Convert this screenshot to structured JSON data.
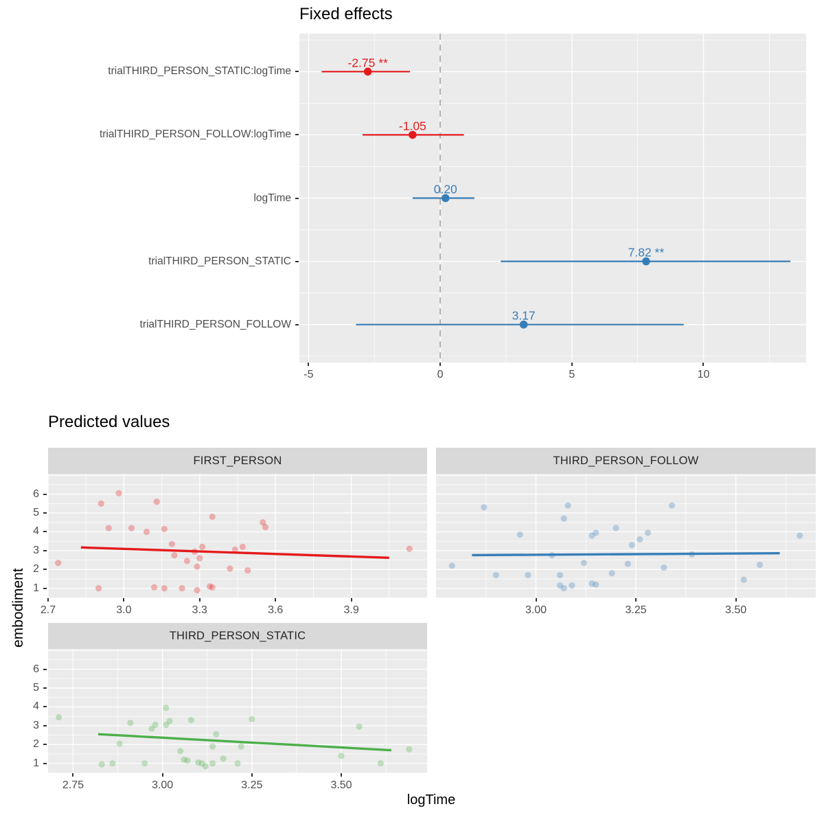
{
  "chart_data": [
    {
      "type": "forest",
      "title": "Fixed effects",
      "xlabel": "",
      "ylabel": "",
      "xlim": [
        -5.35,
        13.9
      ],
      "xticks": [
        -5,
        0,
        5,
        10
      ],
      "xtick_labels": [
        "-5",
        "0",
        "5",
        "10"
      ],
      "minor_xticks": [
        -2.5,
        2.5,
        7.5,
        12.5
      ],
      "zero_line_x": 0,
      "zero_line_style": "dashed-gray",
      "grid": "on",
      "legend": "none",
      "rows": [
        {
          "term": "trialTHIRD_PERSON_STATIC:logTime",
          "estimate": -2.75,
          "ci_low": -4.5,
          "ci_high": -1.15,
          "label": "-2.75 **",
          "color": "#E41A1C"
        },
        {
          "term": "trialTHIRD_PERSON_FOLLOW:logTime",
          "estimate": -1.05,
          "ci_low": -2.95,
          "ci_high": 0.9,
          "label": "-1.05",
          "color": "#E41A1C"
        },
        {
          "term": "logTime",
          "estimate": 0.2,
          "ci_low": -1.05,
          "ci_high": 1.3,
          "label": "0.20",
          "color": "#377EB8"
        },
        {
          "term": "trialTHIRD_PERSON_STATIC",
          "estimate": 7.82,
          "ci_low": 2.3,
          "ci_high": 13.3,
          "label": "7.82 **",
          "color": "#377EB8"
        },
        {
          "term": "trialTHIRD_PERSON_FOLLOW",
          "estimate": 3.17,
          "ci_low": -3.2,
          "ci_high": 9.25,
          "label": "3.17",
          "color": "#377EB8"
        }
      ]
    },
    {
      "type": "scatter",
      "title": "Predicted values",
      "xlabel": "logTime",
      "ylabel": "embodiment",
      "ylim": [
        0.48,
        7.08
      ],
      "yticks": [
        1,
        2,
        3,
        4,
        5,
        6
      ],
      "ytick_labels": [
        "1",
        "2",
        "3",
        "4",
        "5",
        "6"
      ],
      "minor_y_step": 0.5,
      "grid": "on",
      "legend": "none",
      "facets": [
        {
          "label": "FIRST_PERSON",
          "color": "#E41A1C",
          "xlim": [
            2.7,
            4.2
          ],
          "xticks": [
            2.7,
            3.0,
            3.3,
            3.6,
            3.9
          ],
          "xtick_labels": [
            "2.7",
            "3.0",
            "3.3",
            "3.6",
            "3.9"
          ],
          "minor_x": [
            2.85,
            3.15,
            3.45,
            3.75,
            4.05
          ],
          "line": {
            "x": [
              2.83,
              4.05
            ],
            "y": [
              3.17,
              2.62
            ]
          },
          "points": [
            [
              2.74,
              2.35
            ],
            [
              2.9,
              1.0
            ],
            [
              2.91,
              5.5
            ],
            [
              2.94,
              4.2
            ],
            [
              2.98,
              6.05
            ],
            [
              3.03,
              4.2
            ],
            [
              3.09,
              4.0
            ],
            [
              3.12,
              1.05
            ],
            [
              3.13,
              5.6
            ],
            [
              3.16,
              4.15
            ],
            [
              3.16,
              1.0
            ],
            [
              3.19,
              3.35
            ],
            [
              3.2,
              2.75
            ],
            [
              3.23,
              1.0
            ],
            [
              3.25,
              2.45
            ],
            [
              3.28,
              2.95
            ],
            [
              3.29,
              2.15
            ],
            [
              3.29,
              0.9
            ],
            [
              3.3,
              2.6
            ],
            [
              3.31,
              3.2
            ],
            [
              3.34,
              1.1
            ],
            [
              3.35,
              1.05
            ],
            [
              3.35,
              4.8
            ],
            [
              3.42,
              2.05
            ],
            [
              3.44,
              3.05
            ],
            [
              3.47,
              3.2
            ],
            [
              3.49,
              1.95
            ],
            [
              3.55,
              4.5
            ],
            [
              3.56,
              4.25
            ],
            [
              4.13,
              3.1
            ]
          ]
        },
        {
          "label": "THIRD_PERSON_FOLLOW",
          "color": "#377EB8",
          "xlim": [
            2.75,
            3.7
          ],
          "xticks": [
            3.0,
            3.25,
            3.5
          ],
          "xtick_labels": [
            "3.00",
            "3.25",
            "3.50"
          ],
          "minor_x": [
            2.875,
            3.125,
            3.375,
            3.625
          ],
          "line": {
            "x": [
              2.84,
              3.61
            ],
            "y": [
              2.76,
              2.86
            ]
          },
          "points": [
            [
              2.79,
              2.2
            ],
            [
              2.87,
              5.3
            ],
            [
              2.9,
              1.7
            ],
            [
              2.96,
              3.85
            ],
            [
              2.98,
              1.7
            ],
            [
              3.04,
              2.75
            ],
            [
              3.06,
              1.7
            ],
            [
              3.06,
              1.15
            ],
            [
              3.07,
              1.0
            ],
            [
              3.07,
              4.7
            ],
            [
              3.08,
              5.4
            ],
            [
              3.09,
              1.15
            ],
            [
              3.12,
              2.35
            ],
            [
              3.14,
              3.8
            ],
            [
              3.14,
              1.25
            ],
            [
              3.15,
              3.95
            ],
            [
              3.15,
              1.2
            ],
            [
              3.19,
              1.8
            ],
            [
              3.2,
              4.2
            ],
            [
              3.23,
              2.3
            ],
            [
              3.24,
              3.3
            ],
            [
              3.26,
              3.6
            ],
            [
              3.28,
              3.95
            ],
            [
              3.32,
              2.1
            ],
            [
              3.34,
              5.4
            ],
            [
              3.39,
              2.8
            ],
            [
              3.52,
              1.45
            ],
            [
              3.56,
              2.25
            ],
            [
              3.66,
              3.8
            ]
          ]
        },
        {
          "label": "THIRD_PERSON_STATIC",
          "color": "#4DAF4A",
          "xlim": [
            2.68,
            3.74
          ],
          "xticks": [
            2.75,
            3.0,
            3.25,
            3.5
          ],
          "xtick_labels": [
            "2.75",
            "3.00",
            "3.25",
            "3.50"
          ],
          "minor_x": [
            2.875,
            3.125,
            3.375,
            3.625
          ],
          "line": {
            "x": [
              2.82,
              3.64
            ],
            "y": [
              2.55,
              1.7
            ]
          },
          "points": [
            [
              2.71,
              3.45
            ],
            [
              2.83,
              0.95
            ],
            [
              2.86,
              1.0
            ],
            [
              2.88,
              2.05
            ],
            [
              2.91,
              3.15
            ],
            [
              2.95,
              1.0
            ],
            [
              2.97,
              2.85
            ],
            [
              2.98,
              3.05
            ],
            [
              3.01,
              3.95
            ],
            [
              3.01,
              3.05
            ],
            [
              3.02,
              3.25
            ],
            [
              3.05,
              1.65
            ],
            [
              3.06,
              1.2
            ],
            [
              3.07,
              1.15
            ],
            [
              3.08,
              3.3
            ],
            [
              3.1,
              1.05
            ],
            [
              3.11,
              1.0
            ],
            [
              3.12,
              0.85
            ],
            [
              3.14,
              1.0
            ],
            [
              3.14,
              1.9
            ],
            [
              3.15,
              2.55
            ],
            [
              3.17,
              1.25
            ],
            [
              3.21,
              1.0
            ],
            [
              3.22,
              1.9
            ],
            [
              3.25,
              3.35
            ],
            [
              3.5,
              1.4
            ],
            [
              3.55,
              2.95
            ],
            [
              3.61,
              1.0
            ],
            [
              3.69,
              1.75
            ]
          ]
        }
      ]
    }
  ],
  "style": {
    "panel_bg": "#EBEBEB",
    "strip_bg": "#D9D9D9",
    "grid_major": "#FFFFFF",
    "grid_minor": "#FFFFFF",
    "tick_color": "#333333",
    "tick_text_color": "#4D4D4D",
    "zero_line_color": "#AAAAAA",
    "point_alpha": 0.3
  }
}
